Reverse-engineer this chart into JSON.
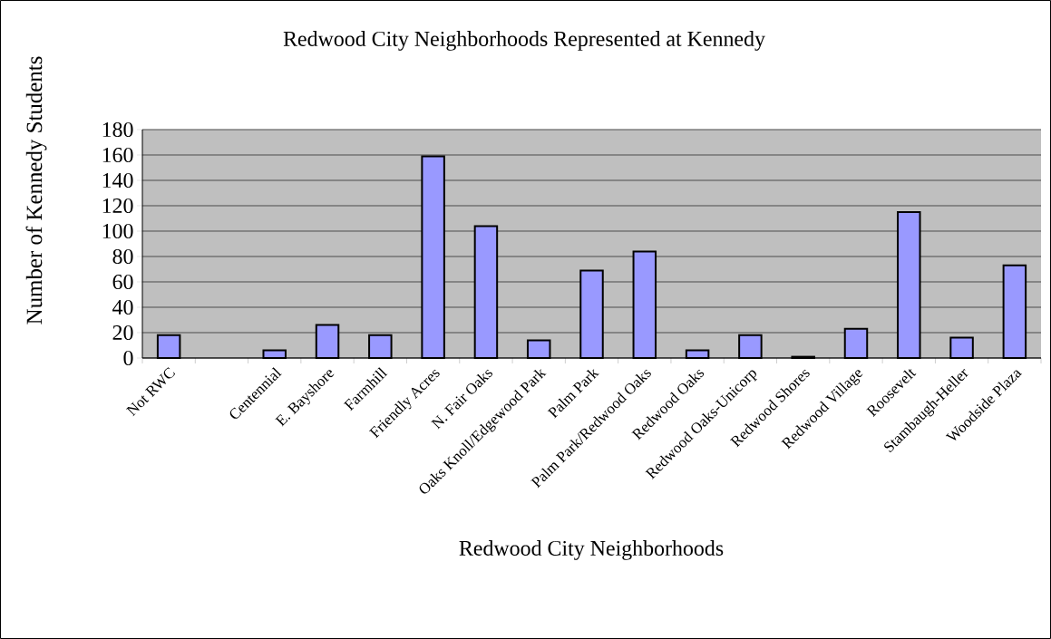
{
  "chart_data": {
    "type": "bar",
    "title": "Redwood City Neighborhoods Represented at Kennedy",
    "xlabel": "Redwood City Neighborhoods",
    "ylabel": "Number of Kennedy Students",
    "categories": [
      "Not RWC",
      null,
      "Centennial",
      "E. Bayshore",
      "Farmhill",
      "Friendly Acres",
      "N. Fair Oaks",
      "Oaks Knoll/Edgewood Park",
      "Palm Park",
      "Palm Park/Redwood Oaks",
      "Redwood Oaks",
      "Redwood Oaks-Unicorp",
      "Redwood Shores",
      "Redwood Village",
      "Roosevelt",
      "Stambaugh-Heller",
      "Woodside Plaza"
    ],
    "values": [
      18,
      null,
      6,
      26,
      18,
      159,
      104,
      14,
      69,
      84,
      6,
      18,
      1,
      23,
      115,
      16,
      73
    ],
    "color": "#9999ff",
    "ylim": [
      0,
      180
    ],
    "yticks": [
      0,
      20,
      40,
      60,
      80,
      100,
      120,
      140,
      160,
      180
    ],
    "grid": "y"
  }
}
